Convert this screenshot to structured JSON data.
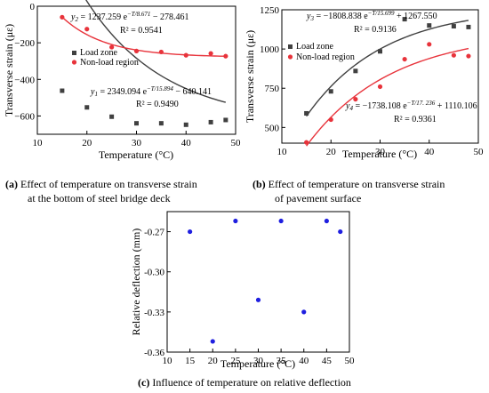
{
  "chart_data": [
    {
      "type": "scatter",
      "xlabel": "Temperature (°C)",
      "ylabel": "Transverse strain (με)",
      "xlim": [
        10,
        50
      ],
      "ylim": [
        -700,
        0
      ],
      "xticks": [
        10,
        20,
        30,
        40,
        50
      ],
      "yticks": [
        -600,
        -400,
        -200,
        0
      ],
      "ytick_labels": [
        "−600",
        "−400",
        "−200",
        "0"
      ],
      "legend": {
        "placement": "center-right",
        "entries": [
          "Load zone",
          "Non-load region"
        ]
      },
      "series": [
        {
          "name": "Load zone",
          "marker": "square",
          "color": "#404040",
          "x": [
            15,
            20,
            25,
            30,
            35,
            40,
            45,
            48
          ],
          "y": [
            -462,
            -553,
            -604,
            -640,
            -640,
            -648,
            -634,
            -622
          ],
          "fit": {
            "a": 2349.094,
            "t": 15.894,
            "c": -640.141
          }
        },
        {
          "name": "Non-load region",
          "marker": "circle",
          "color": "#e8333b",
          "x": [
            15,
            20,
            25,
            30,
            35,
            40,
            45,
            48
          ],
          "y": [
            -60,
            -125,
            -224,
            -245,
            -250,
            -268,
            -258,
            -273
          ],
          "fit": {
            "a": 1237.259,
            "t": 8.671,
            "c": -278.461
          }
        }
      ],
      "annotations": {
        "red_eq": {
          "y": "y",
          "sub": "2",
          "eq": " = 1237.259 e",
          "exp": "−T/8.671",
          "tail": " − 278.461",
          "r2": "R² = 0.9541"
        },
        "black_eq": {
          "y": "y",
          "sub": "1",
          "eq": " = 2349.094 e",
          "exp": "−T/15.894",
          "tail": " − 640.141",
          "r2": "R² = 0.9490"
        }
      },
      "caption": {
        "label": "(a)",
        "line1": " Effect of temperature on transverse strain",
        "line2": "at the bottom of steel bridge deck"
      }
    },
    {
      "type": "scatter",
      "xlabel": "Temperature (°C)",
      "ylabel": "Transverse strain (με)",
      "xlim": [
        10,
        50
      ],
      "ylim": [
        400,
        1250
      ],
      "xticks": [
        10,
        20,
        30,
        40,
        50
      ],
      "yticks": [
        500,
        750,
        1000,
        1250
      ],
      "ytick_labels": [
        "500",
        "750",
        "1000",
        "1250"
      ],
      "legend": {
        "placement": "top-left",
        "entries": [
          "Load zone",
          "Non-load region"
        ]
      },
      "series": [
        {
          "name": "Load zone",
          "marker": "square",
          "color": "#404040",
          "x": [
            15,
            20,
            25,
            30,
            35,
            40,
            45,
            48
          ],
          "y": [
            590,
            730,
            860,
            985,
            1190,
            1150,
            1145,
            1140
          ],
          "fit": {
            "a": -1808.838,
            "t": 15.699,
            "c": 1267.55
          }
        },
        {
          "name": "Non-load region",
          "marker": "circle",
          "color": "#e8333b",
          "x": [
            15,
            20,
            25,
            30,
            35,
            40,
            45,
            48
          ],
          "y": [
            405,
            550,
            680,
            760,
            935,
            1030,
            960,
            955
          ],
          "fit": {
            "a": -1738.108,
            "t": 17.236,
            "c": 1110.106
          }
        }
      ],
      "annotations": {
        "black_eq": {
          "y": "y",
          "sub": "3",
          "eq": " = −1808.838 e",
          "exp": "−T/15.699",
          "tail": " + 1267.550",
          "r2": "R² = 0.9136"
        },
        "red_eq": {
          "y": "y",
          "sub": "4",
          "eq": " = −1738.108 e",
          "exp": "−T/17. 236",
          "tail": " + 1110.106",
          "r2": "R² = 0.9361"
        }
      },
      "caption": {
        "label": "(b)",
        "line1": " Effect of temperature on transverse strain",
        "line2": "of pavement surface"
      }
    },
    {
      "type": "scatter",
      "xlabel": "Temperature (°C)",
      "ylabel": "Relative deflection (mm)",
      "xlim": [
        10,
        50
      ],
      "ylim": [
        -0.36,
        -0.255
      ],
      "xticks": [
        10,
        15,
        20,
        25,
        30,
        35,
        40,
        45,
        50
      ],
      "yticks": [
        -0.36,
        -0.33,
        -0.3,
        -0.27
      ],
      "ytick_labels": [
        "-0.36",
        "-0.33",
        "-0.30",
        "-0.27"
      ],
      "series": [
        {
          "marker": "circle",
          "color": "#1f1fe0",
          "x": [
            15,
            20,
            25,
            30,
            35,
            40,
            45,
            48
          ],
          "y": [
            -0.27,
            -0.352,
            -0.262,
            -0.321,
            -0.262,
            -0.33,
            -0.262,
            -0.27
          ]
        }
      ],
      "caption": {
        "label": "(c)",
        "line1": " Influence of temperature on relative deflection"
      }
    }
  ]
}
